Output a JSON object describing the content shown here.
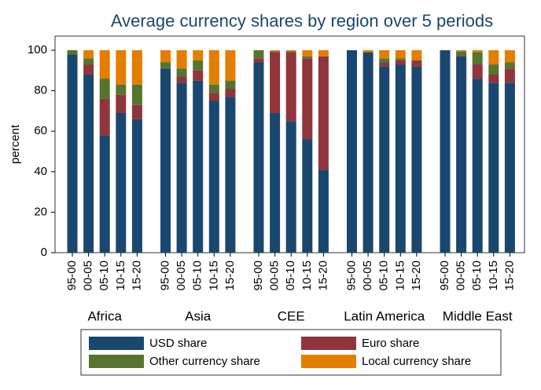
{
  "chart_data": {
    "type": "stacked_bar",
    "title": "Average currency shares by region over 5 periods",
    "y_label": "percent",
    "groups": [
      "Africa",
      "Asia",
      "CEE",
      "Latin America",
      "Middle East"
    ],
    "categories": [
      "95-00",
      "00-05",
      "05-10",
      "10-15",
      "15-20",
      "95-00",
      "00-05",
      "05-10",
      "10-15",
      "15-20",
      "95-00",
      "00-05",
      "05-10",
      "10-15",
      "15-20",
      "95-00",
      "00-05",
      "05-10",
      "10-15",
      "15-20",
      "95-00",
      "00-05",
      "05-10",
      "10-15",
      "15-20"
    ],
    "series": [
      {
        "name": "USD share",
        "color": "#1a476f",
        "values": [
          98,
          88,
          58,
          69,
          66,
          91,
          84,
          85,
          75,
          77,
          94,
          69,
          65,
          56,
          41,
          100,
          99,
          92,
          93,
          92,
          100,
          97,
          86,
          84,
          84
        ]
      },
      {
        "name": "Euro share",
        "color": "#90353b",
        "values": [
          0,
          5,
          18,
          9,
          7,
          0,
          3,
          5,
          4,
          4,
          2,
          30,
          34,
          40,
          56,
          0,
          0,
          2,
          2,
          3,
          0,
          0.5,
          7,
          4,
          7
        ]
      },
      {
        "name": "Other currency share",
        "color": "#55752f",
        "values": [
          2,
          3,
          10,
          5,
          10,
          3,
          4,
          5,
          4,
          4,
          4,
          0.5,
          0.5,
          1,
          0,
          0,
          0,
          2,
          1,
          0,
          0,
          2,
          6,
          5,
          3
        ]
      },
      {
        "name": "Local currency share",
        "color": "#e37e00",
        "values": [
          0,
          4,
          14,
          17,
          17,
          6,
          9,
          5,
          17,
          15,
          0,
          0.5,
          0.5,
          3,
          3,
          0,
          1,
          4,
          4,
          5,
          0,
          0.5,
          1,
          7,
          6
        ]
      }
    ],
    "ylim": [
      0,
      100
    ],
    "yticks": [
      0,
      20,
      40,
      60,
      80,
      100
    ],
    "grid": false
  }
}
